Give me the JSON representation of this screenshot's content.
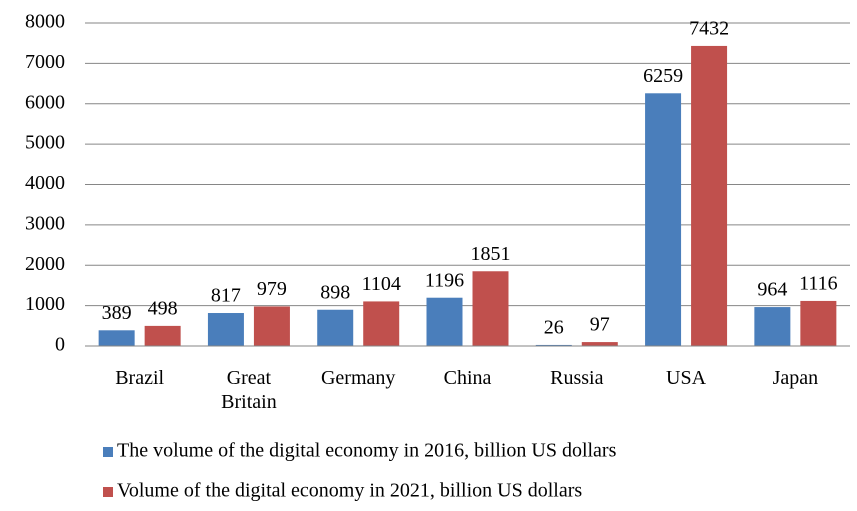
{
  "chart_data": {
    "type": "bar",
    "categories": [
      "Brazil",
      "Great Britain",
      "Germany",
      "China",
      "Russia",
      "USA",
      "Japan"
    ],
    "series": [
      {
        "name": "The volume of the digital economy in 2016, billion US dollars",
        "color": "#4a7ebb",
        "values": [
          389,
          817,
          898,
          1196,
          26,
          6259,
          964
        ]
      },
      {
        "name": "Volume of the digital economy in 2021, billion US dollars",
        "color": "#c0504d",
        "values": [
          498,
          979,
          1104,
          1851,
          97,
          7432,
          1116
        ]
      }
    ],
    "ylim": [
      0,
      8000
    ],
    "yticks": [
      0,
      1000,
      2000,
      3000,
      4000,
      5000,
      6000,
      7000,
      8000
    ],
    "grid": true
  }
}
